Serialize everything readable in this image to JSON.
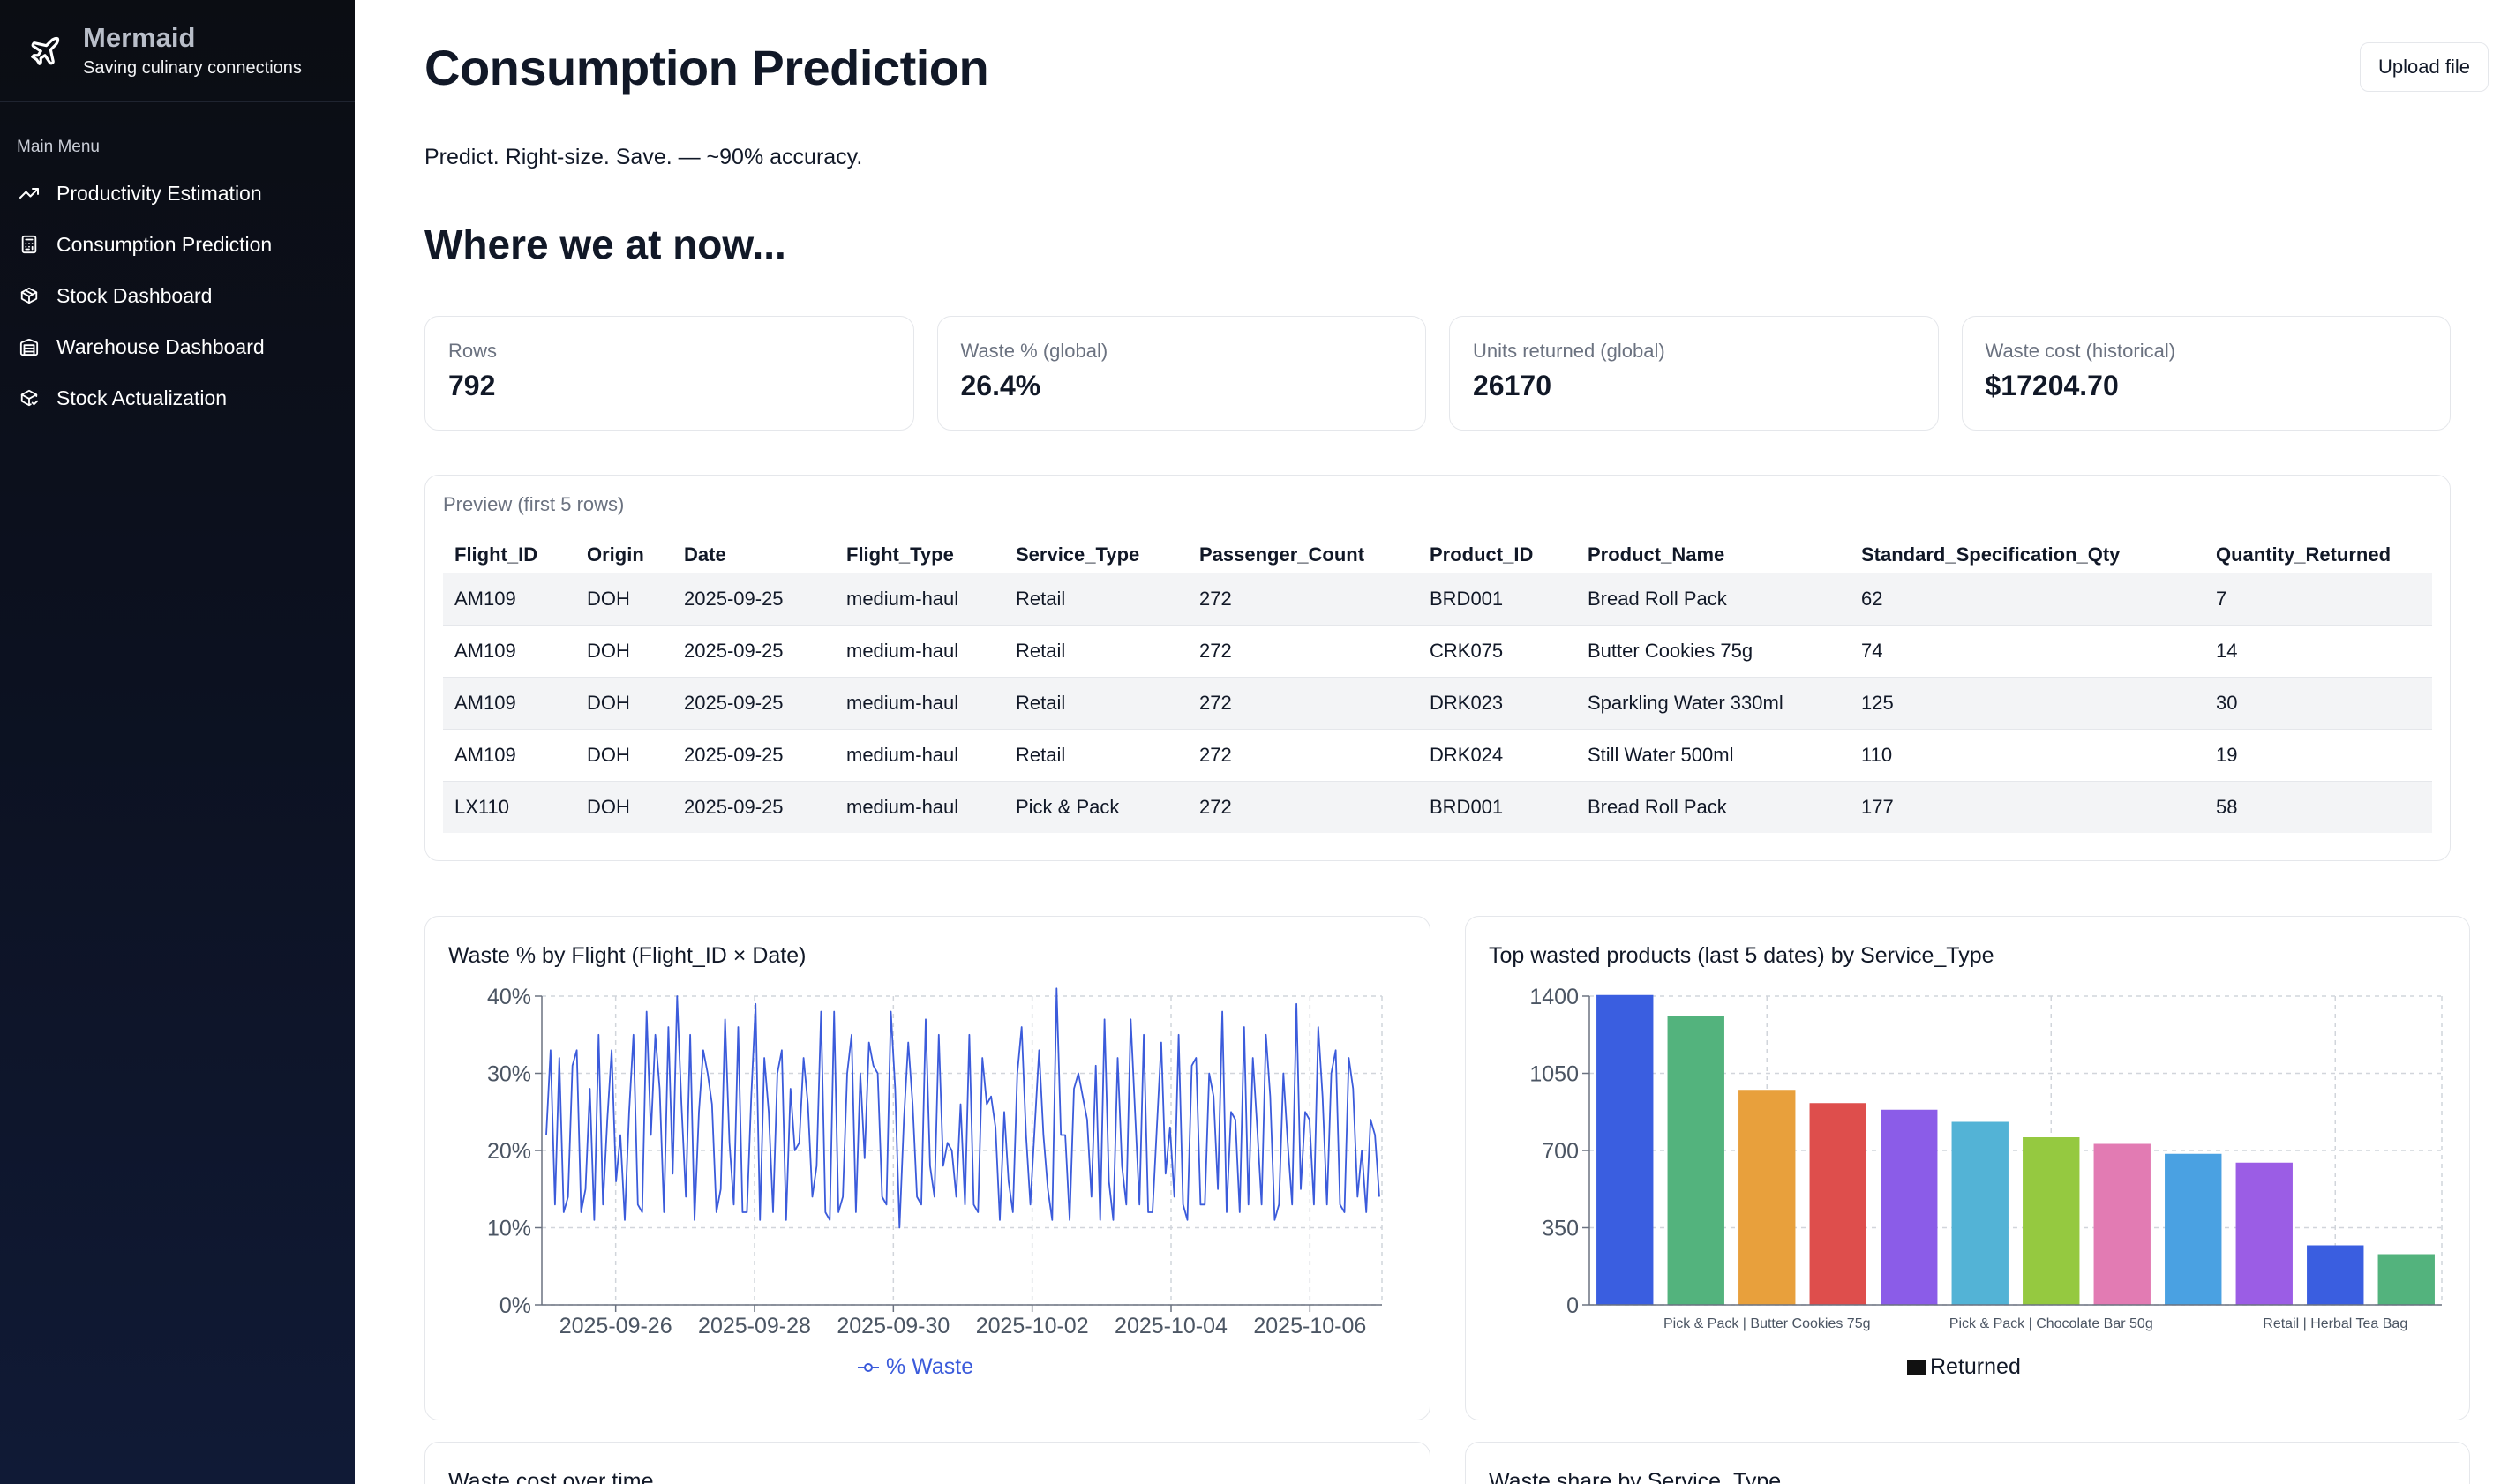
{
  "brand": {
    "title": "Mermaid",
    "subtitle": "Saving culinary connections"
  },
  "sidebar": {
    "section_label": "Main Menu",
    "items": [
      {
        "label": "Productivity Estimation",
        "icon": "trending-up-icon"
      },
      {
        "label": "Consumption Prediction",
        "icon": "calculator-icon"
      },
      {
        "label": "Stock Dashboard",
        "icon": "package-icon"
      },
      {
        "label": "Warehouse Dashboard",
        "icon": "warehouse-icon"
      },
      {
        "label": "Stock Actualization",
        "icon": "package-check-icon"
      }
    ]
  },
  "header": {
    "title": "Consumption Prediction",
    "upload_label": "Upload file"
  },
  "tagline": "Predict. Right-size. Save. — ~90% accuracy.",
  "section_title": "Where we at now...",
  "kpis": [
    {
      "label": "Rows",
      "value": "792"
    },
    {
      "label": "Waste % (global)",
      "value": "26.4%"
    },
    {
      "label": "Units returned (global)",
      "value": "26170"
    },
    {
      "label": "Waste cost (historical)",
      "value": "$17204.70"
    }
  ],
  "preview": {
    "label": "Preview (first 5 rows)",
    "columns": [
      "Flight_ID",
      "Origin",
      "Date",
      "Flight_Type",
      "Service_Type",
      "Passenger_Count",
      "Product_ID",
      "Product_Name",
      "Standard_Specification_Qty",
      "Quantity_Returned"
    ],
    "rows": [
      [
        "AM109",
        "DOH",
        "2025-09-25",
        "medium-haul",
        "Retail",
        "272",
        "BRD001",
        "Bread Roll Pack",
        "62",
        "7"
      ],
      [
        "AM109",
        "DOH",
        "2025-09-25",
        "medium-haul",
        "Retail",
        "272",
        "CRK075",
        "Butter Cookies 75g",
        "74",
        "14"
      ],
      [
        "AM109",
        "DOH",
        "2025-09-25",
        "medium-haul",
        "Retail",
        "272",
        "DRK023",
        "Sparkling Water 330ml",
        "125",
        "30"
      ],
      [
        "AM109",
        "DOH",
        "2025-09-25",
        "medium-haul",
        "Retail",
        "272",
        "DRK024",
        "Still Water 500ml",
        "110",
        "19"
      ],
      [
        "LX110",
        "DOH",
        "2025-09-25",
        "medium-haul",
        "Pick & Pack",
        "272",
        "BRD001",
        "Bread Roll Pack",
        "177",
        "58"
      ]
    ]
  },
  "colors": {
    "line": "#3b5bdb",
    "grid": "#d1d5db"
  },
  "chart_data": [
    {
      "type": "line",
      "title": "Waste % by Flight (Flight_ID × Date)",
      "ylim": [
        0,
        40
      ],
      "yticks": [
        "0%",
        "10%",
        "20%",
        "30%",
        "40%"
      ],
      "x_start": "2025-09-25",
      "xticks": [
        "2025-09-26",
        "2025-09-28",
        "2025-09-30",
        "2025-10-02",
        "2025-10-04",
        "2025-10-06"
      ],
      "legend": "% Waste",
      "series": [
        {
          "name": "% Waste",
          "color": "#3b5bdb",
          "values": [
            22,
            33,
            13,
            32,
            12,
            14,
            31,
            33,
            12,
            15,
            28,
            11,
            35,
            13,
            24,
            33,
            16,
            22,
            11,
            25,
            35,
            13,
            12,
            38,
            22,
            35,
            28,
            12,
            36,
            17,
            40,
            26,
            14,
            35,
            11,
            25,
            33,
            30,
            26,
            12,
            15,
            37,
            21,
            13,
            36,
            12,
            12,
            27,
            39,
            11,
            32,
            25,
            12,
            30,
            33,
            11,
            28,
            20,
            21,
            32,
            26,
            14,
            18,
            38,
            12,
            11,
            38,
            12,
            14,
            30,
            35,
            12,
            30,
            19,
            34,
            31,
            30,
            14,
            13,
            38,
            28,
            10,
            24,
            34,
            26,
            14,
            13,
            37,
            18,
            14,
            35,
            18,
            21,
            20,
            14,
            26,
            13,
            35,
            13,
            12,
            32,
            26,
            27,
            23,
            11,
            25,
            16,
            12,
            30,
            36,
            22,
            13,
            23,
            33,
            22,
            15,
            11,
            41,
            22,
            22,
            11,
            28,
            30,
            27,
            24,
            14,
            31,
            11,
            37,
            16,
            11,
            32,
            18,
            13,
            37,
            25,
            13,
            35,
            12,
            12,
            23,
            34,
            17,
            23,
            14,
            35,
            13,
            11,
            31,
            32,
            13,
            13,
            30,
            27,
            15,
            38,
            12,
            25,
            24,
            12,
            36,
            13,
            32,
            23,
            13,
            35,
            27,
            11,
            13,
            30,
            21,
            13,
            39,
            15,
            25,
            24,
            13,
            36,
            27,
            13,
            30,
            33,
            13,
            12,
            32,
            28,
            14,
            20,
            12,
            24,
            22,
            14
          ]
        }
      ]
    },
    {
      "type": "bar",
      "title": "Top wasted products (last 5 dates) by Service_Type",
      "ylim": [
        0,
        1400
      ],
      "yticks": [
        "0",
        "350",
        "700",
        "1050",
        "1400"
      ],
      "tick_labels": [
        "Pick & Pack | Butter Cookies 75g",
        "Pick & Pack | Chocolate Bar 50g",
        "Retail | Herbal Tea Bag"
      ],
      "legend": "Returned",
      "values": [
        1405,
        1310,
        975,
        915,
        885,
        830,
        760,
        730,
        685,
        645,
        270,
        230
      ],
      "bar_colors": [
        "#3a5ee0",
        "#53b37d",
        "#e8a03c",
        "#de4e4c",
        "#8b5ce8",
        "#53b3d6",
        "#95c940",
        "#e27bb3",
        "#4aa1e2",
        "#9b5de5",
        "#3a5ee0",
        "#53b37d"
      ]
    }
  ],
  "more_cards": [
    "Waste cost over time",
    "Waste share by Service_Type"
  ]
}
